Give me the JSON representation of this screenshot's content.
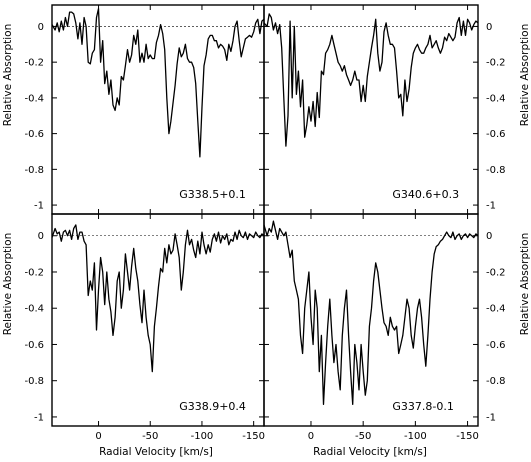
{
  "chart_data": {
    "type": "line",
    "layout": "2x2 grid of panels with shared axes",
    "xlabel": "Radial Velocity [km/s]",
    "ylabel": "Relative Absorption",
    "xlim": [
      45,
      -160
    ],
    "ylim": [
      -1.05,
      0.12
    ],
    "x_ticks": [
      0,
      -50,
      -100,
      -150
    ],
    "y_ticks": [
      0,
      -0.2,
      -0.4,
      -0.6,
      -0.8,
      -1
    ],
    "x_tick_labels": [
      "0",
      "-50",
      "-100",
      "-150"
    ],
    "y_tick_labels": [
      "0",
      "-0.2",
      "-0.4",
      "-0.6",
      "-0.8",
      "-1"
    ],
    "zero_line": "dashed",
    "grid": false,
    "panels": [
      {
        "position": "top-left",
        "label": "G338.5+0.1",
        "x": [
          45,
          42,
          40,
          38,
          36,
          34,
          32,
          30,
          28,
          26,
          24,
          22,
          20,
          18,
          16,
          14,
          12,
          10,
          8,
          6,
          4,
          2,
          0,
          -2,
          -4,
          -6,
          -8,
          -10,
          -12,
          -14,
          -16,
          -18,
          -20,
          -22,
          -24,
          -26,
          -28,
          -30,
          -32,
          -34,
          -36,
          -38,
          -40,
          -42,
          -44,
          -46,
          -48,
          -50,
          -52,
          -54,
          -56,
          -58,
          -60,
          -62,
          -64,
          -66,
          -68,
          -70,
          -72,
          -74,
          -76,
          -78,
          -80,
          -82,
          -84,
          -86,
          -88,
          -90,
          -92,
          -94,
          -96,
          -98,
          -100,
          -102,
          -104,
          -106,
          -108,
          -110,
          -112,
          -114,
          -116,
          -118,
          -120,
          -122,
          -124,
          -126,
          -128,
          -130,
          -132,
          -134,
          -136,
          -138,
          -140,
          -142,
          -144,
          -146,
          -148,
          -150,
          -152,
          -154,
          -156,
          -158,
          -160
        ],
        "y": [
          0.01,
          -0.02,
          0.02,
          -0.03,
          0.03,
          -0.02,
          0.05,
          0.0,
          0.08,
          0.08,
          0.07,
          0.02,
          -0.07,
          0.02,
          -0.1,
          0.05,
          0.0,
          -0.2,
          -0.21,
          -0.15,
          -0.13,
          0.05,
          0.1,
          -0.2,
          -0.08,
          -0.32,
          -0.25,
          -0.38,
          -0.3,
          -0.44,
          -0.47,
          -0.4,
          -0.44,
          -0.28,
          -0.3,
          -0.22,
          -0.13,
          -0.2,
          -0.16,
          -0.05,
          -0.1,
          -0.02,
          -0.2,
          -0.15,
          -0.2,
          -0.1,
          -0.18,
          -0.16,
          -0.18,
          -0.18,
          -0.09,
          -0.05,
          0.01,
          -0.04,
          -0.13,
          -0.4,
          -0.6,
          -0.53,
          -0.43,
          -0.33,
          -0.21,
          -0.12,
          -0.17,
          -0.15,
          -0.1,
          -0.18,
          -0.2,
          -0.2,
          -0.23,
          -0.32,
          -0.53,
          -0.73,
          -0.45,
          -0.22,
          -0.16,
          -0.07,
          -0.05,
          -0.05,
          -0.08,
          -0.08,
          -0.12,
          -0.1,
          -0.11,
          -0.13,
          -0.19,
          -0.1,
          -0.14,
          -0.08,
          0.0,
          0.03,
          -0.08,
          -0.17,
          -0.12,
          -0.07,
          -0.06,
          -0.05,
          -0.06,
          -0.03,
          0.02,
          0.04,
          -0.04,
          0.03,
          0.04
        ]
      },
      {
        "position": "top-right",
        "label": "G340.6+0.3",
        "x": [
          45,
          42,
          40,
          38,
          36,
          34,
          32,
          30,
          28,
          26,
          24,
          22,
          20,
          18,
          16,
          14,
          12,
          10,
          8,
          6,
          4,
          2,
          0,
          -2,
          -4,
          -6,
          -8,
          -10,
          -12,
          -14,
          -16,
          -18,
          -20,
          -22,
          -24,
          -26,
          -28,
          -30,
          -32,
          -34,
          -36,
          -38,
          -40,
          -42,
          -44,
          -46,
          -48,
          -50,
          -52,
          -54,
          -56,
          -58,
          -60,
          -62,
          -64,
          -66,
          -68,
          -70,
          -72,
          -74,
          -76,
          -78,
          -80,
          -82,
          -84,
          -86,
          -88,
          -90,
          -92,
          -94,
          -96,
          -98,
          -100,
          -102,
          -104,
          -106,
          -108,
          -110,
          -112,
          -114,
          -116,
          -118,
          -120,
          -122,
          -124,
          -126,
          -128,
          -130,
          -132,
          -134,
          -136,
          -138,
          -140,
          -142,
          -144,
          -146,
          -148,
          -150,
          -152,
          -154,
          -156,
          -158,
          -160
        ],
        "y": [
          0.02,
          0.0,
          0.07,
          0.05,
          -0.02,
          0.02,
          -0.04,
          0.01,
          -0.12,
          -0.4,
          -0.67,
          -0.5,
          0.03,
          -0.4,
          0.0,
          -0.38,
          -0.25,
          -0.45,
          -0.3,
          -0.62,
          -0.55,
          -0.45,
          -0.53,
          -0.42,
          -0.56,
          -0.37,
          -0.51,
          -0.25,
          -0.27,
          -0.15,
          -0.13,
          -0.1,
          -0.05,
          -0.1,
          -0.15,
          -0.2,
          -0.22,
          -0.25,
          -0.22,
          -0.27,
          -0.3,
          -0.33,
          -0.3,
          -0.25,
          -0.3,
          -0.3,
          -0.42,
          -0.33,
          -0.42,
          -0.28,
          -0.2,
          -0.12,
          -0.05,
          0.04,
          -0.15,
          -0.25,
          -0.2,
          -0.03,
          0.02,
          -0.05,
          -0.1,
          -0.1,
          -0.12,
          -0.25,
          -0.4,
          -0.38,
          -0.5,
          -0.3,
          -0.42,
          -0.35,
          -0.23,
          -0.15,
          -0.12,
          -0.1,
          -0.13,
          -0.15,
          -0.15,
          -0.12,
          -0.1,
          -0.05,
          -0.12,
          -0.1,
          -0.08,
          -0.12,
          -0.15,
          -0.12,
          -0.06,
          -0.08,
          -0.04,
          -0.06,
          -0.08,
          -0.06,
          0.02,
          0.05,
          -0.05,
          0.03,
          -0.05,
          0.04,
          0.02,
          -0.02,
          0.01,
          0.03,
          0.02
        ]
      },
      {
        "position": "bottom-left",
        "label": "G338.9+0.4",
        "x": [
          45,
          42,
          40,
          38,
          36,
          34,
          32,
          30,
          28,
          26,
          24,
          22,
          20,
          18,
          16,
          14,
          12,
          10,
          8,
          6,
          4,
          2,
          0,
          -2,
          -4,
          -6,
          -8,
          -10,
          -12,
          -14,
          -16,
          -18,
          -20,
          -22,
          -24,
          -26,
          -28,
          -30,
          -32,
          -34,
          -36,
          -38,
          -40,
          -42,
          -44,
          -46,
          -48,
          -50,
          -52,
          -54,
          -56,
          -58,
          -60,
          -62,
          -64,
          -66,
          -68,
          -70,
          -72,
          -74,
          -76,
          -78,
          -80,
          -82,
          -84,
          -86,
          -88,
          -90,
          -92,
          -94,
          -96,
          -98,
          -100,
          -102,
          -104,
          -106,
          -108,
          -110,
          -112,
          -114,
          -116,
          -118,
          -120,
          -122,
          -124,
          -126,
          -128,
          -130,
          -132,
          -134,
          -136,
          -138,
          -140,
          -142,
          -144,
          -146,
          -148,
          -150,
          -152,
          -154,
          -156,
          -158,
          -160
        ],
        "y": [
          -0.01,
          0.04,
          0.01,
          0.02,
          -0.03,
          0.02,
          0.03,
          0.0,
          0.03,
          -0.02,
          0.04,
          0.06,
          -0.02,
          0.02,
          0.02,
          -0.03,
          -0.05,
          -0.33,
          -0.25,
          -0.3,
          -0.15,
          -0.52,
          -0.3,
          -0.12,
          -0.2,
          -0.38,
          -0.2,
          -0.35,
          -0.42,
          -0.55,
          -0.45,
          -0.25,
          -0.2,
          -0.4,
          -0.3,
          -0.1,
          -0.2,
          -0.3,
          -0.17,
          -0.07,
          -0.18,
          -0.25,
          -0.38,
          -0.48,
          -0.3,
          -0.45,
          -0.55,
          -0.6,
          -0.75,
          -0.5,
          -0.4,
          -0.28,
          -0.18,
          -0.2,
          -0.07,
          -0.15,
          -0.05,
          -0.1,
          -0.08,
          0.01,
          -0.05,
          -0.12,
          -0.3,
          -0.2,
          -0.05,
          0.03,
          -0.05,
          -0.02,
          -0.08,
          -0.12,
          -0.03,
          -0.1,
          0.02,
          -0.05,
          -0.1,
          -0.05,
          -0.09,
          -0.02,
          0.01,
          -0.03,
          0.02,
          -0.04,
          0.0,
          -0.02,
          0.01,
          -0.05,
          -0.02,
          -0.03,
          0.02,
          -0.02,
          0.03,
          0.0,
          -0.01,
          0.02,
          -0.02,
          0.01,
          0.0,
          -0.01,
          0.02,
          0.0,
          -0.01,
          0.01,
          0.0
        ]
      },
      {
        "position": "bottom-right",
        "label": "G337.8-0.1",
        "x": [
          45,
          42,
          40,
          38,
          36,
          34,
          32,
          30,
          28,
          26,
          24,
          22,
          20,
          18,
          16,
          14,
          12,
          10,
          8,
          6,
          4,
          2,
          0,
          -2,
          -4,
          -6,
          -8,
          -10,
          -12,
          -14,
          -16,
          -18,
          -20,
          -22,
          -24,
          -26,
          -28,
          -30,
          -32,
          -34,
          -36,
          -38,
          -40,
          -42,
          -44,
          -46,
          -48,
          -50,
          -52,
          -54,
          -56,
          -58,
          -60,
          -62,
          -64,
          -66,
          -68,
          -70,
          -72,
          -74,
          -76,
          -78,
          -80,
          -82,
          -84,
          -86,
          -88,
          -90,
          -92,
          -94,
          -96,
          -98,
          -100,
          -102,
          -104,
          -106,
          -108,
          -110,
          -112,
          -114,
          -116,
          -118,
          -120,
          -122,
          -124,
          -126,
          -128,
          -130,
          -132,
          -134,
          -136,
          -138,
          -140,
          -142,
          -144,
          -146,
          -148,
          -150,
          -152,
          -154,
          -156,
          -158,
          -160
        ],
        "y": [
          0.06,
          0.0,
          0.04,
          0.02,
          0.08,
          0.03,
          -0.02,
          0.04,
          0.02,
          0.0,
          0.02,
          -0.05,
          -0.12,
          -0.08,
          -0.25,
          -0.3,
          -0.35,
          -0.55,
          -0.65,
          -0.4,
          -0.3,
          -0.2,
          -0.45,
          -0.6,
          -0.3,
          -0.4,
          -0.75,
          -0.55,
          -0.93,
          -0.7,
          -0.5,
          -0.35,
          -0.55,
          -0.7,
          -0.6,
          -0.75,
          -0.85,
          -0.55,
          -0.4,
          -0.3,
          -0.55,
          -0.75,
          -0.93,
          -0.6,
          -0.7,
          -0.85,
          -0.6,
          -0.75,
          -0.88,
          -0.8,
          -0.5,
          -0.4,
          -0.25,
          -0.15,
          -0.2,
          -0.3,
          -0.4,
          -0.48,
          -0.5,
          -0.55,
          -0.45,
          -0.5,
          -0.52,
          -0.5,
          -0.65,
          -0.6,
          -0.55,
          -0.45,
          -0.35,
          -0.4,
          -0.55,
          -0.62,
          -0.5,
          -0.4,
          -0.35,
          -0.45,
          -0.6,
          -0.72,
          -0.55,
          -0.35,
          -0.2,
          -0.1,
          -0.06,
          -0.05,
          -0.03,
          -0.02,
          0.0,
          0.02,
          0.0,
          -0.01,
          0.02,
          -0.02,
          0.0,
          0.01,
          -0.02,
          0.0,
          0.01,
          -0.01,
          0.01,
          0.0,
          -0.01,
          0.01,
          0.0
        ]
      }
    ]
  }
}
